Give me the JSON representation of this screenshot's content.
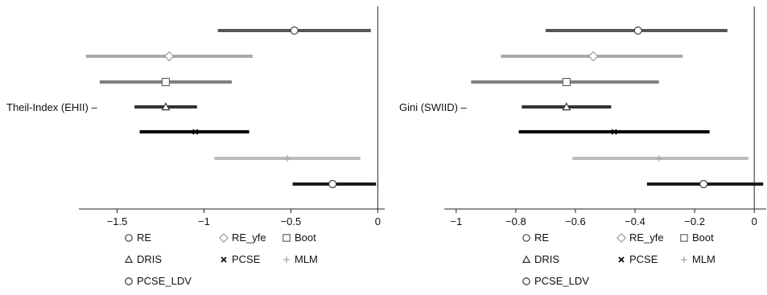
{
  "chart_data": [
    {
      "type": "errorbar",
      "ylabel": "Theil-Index (EHII)",
      "xlim": [
        -1.72,
        0.04
      ],
      "xticks": [
        -1.5,
        -1,
        -0.5,
        0
      ],
      "xtick_labels": [
        "−1.5",
        "−1",
        "−0.5",
        "0"
      ],
      "reference_line": 0,
      "series": [
        {
          "name": "RE",
          "marker": "circle",
          "color": "#555555",
          "estimate": -0.48,
          "lower": -0.92,
          "upper": -0.04
        },
        {
          "name": "RE_yfe",
          "marker": "diamond",
          "color": "#aaaaaa",
          "estimate": -1.2,
          "lower": -1.68,
          "upper": -0.72
        },
        {
          "name": "Boot",
          "marker": "square",
          "color": "#7f7f7f",
          "estimate": -1.22,
          "lower": -1.6,
          "upper": -0.84
        },
        {
          "name": "DRIS",
          "marker": "triangle",
          "color": "#333333",
          "estimate": -1.22,
          "lower": -1.4,
          "upper": -1.04
        },
        {
          "name": "PCSE",
          "marker": "x",
          "color": "#000000",
          "estimate": -1.05,
          "lower": -1.37,
          "upper": -0.74
        },
        {
          "name": "MLM",
          "marker": "plus",
          "color": "#bbbbbb",
          "estimate": -0.52,
          "lower": -0.94,
          "upper": -0.1
        },
        {
          "name": "PCSE_LDV",
          "marker": "circle-thin",
          "color": "#1a1a1a",
          "estimate": -0.26,
          "lower": -0.49,
          "upper": -0.01
        }
      ]
    },
    {
      "type": "errorbar",
      "ylabel": "Gini (SWIID)",
      "xlim": [
        -1.04,
        0.04
      ],
      "xticks": [
        -1,
        -0.8,
        -0.6,
        -0.4,
        -0.2,
        0
      ],
      "xtick_labels": [
        "−1",
        "−0.8",
        "−0.6",
        "−0.4",
        "−0.2",
        "0"
      ],
      "reference_line": 0,
      "series": [
        {
          "name": "RE",
          "marker": "circle",
          "color": "#555555",
          "estimate": -0.39,
          "lower": -0.7,
          "upper": -0.09
        },
        {
          "name": "RE_yfe",
          "marker": "diamond",
          "color": "#aaaaaa",
          "estimate": -0.54,
          "lower": -0.85,
          "upper": -0.24
        },
        {
          "name": "Boot",
          "marker": "square",
          "color": "#7f7f7f",
          "estimate": -0.63,
          "lower": -0.95,
          "upper": -0.32
        },
        {
          "name": "DRIS",
          "marker": "triangle",
          "color": "#333333",
          "estimate": -0.63,
          "lower": -0.78,
          "upper": -0.48
        },
        {
          "name": "PCSE",
          "marker": "x",
          "color": "#000000",
          "estimate": -0.47,
          "lower": -0.79,
          "upper": -0.15
        },
        {
          "name": "MLM",
          "marker": "plus",
          "color": "#bbbbbb",
          "estimate": -0.32,
          "lower": -0.61,
          "upper": -0.02
        },
        {
          "name": "PCSE_LDV",
          "marker": "circle-thin",
          "color": "#1a1a1a",
          "estimate": -0.17,
          "lower": -0.36,
          "upper": 0.03
        }
      ]
    }
  ],
  "legend": {
    "placement": "bottom",
    "items": [
      {
        "label": "RE",
        "marker": "circle"
      },
      {
        "label": "RE_yfe",
        "marker": "diamond"
      },
      {
        "label": "Boot",
        "marker": "square"
      },
      {
        "label": "DRIS",
        "marker": "triangle"
      },
      {
        "label": "PCSE",
        "marker": "x"
      },
      {
        "label": "MLM",
        "marker": "plus"
      },
      {
        "label": "PCSE_LDV",
        "marker": "circle-thin"
      }
    ]
  }
}
